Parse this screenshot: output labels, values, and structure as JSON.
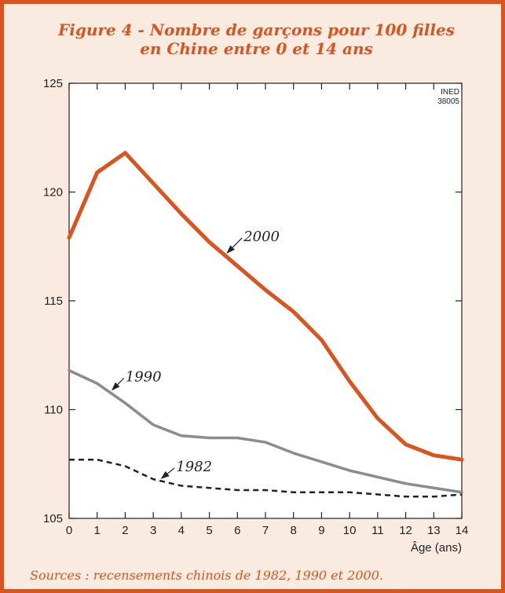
{
  "chart_data": {
    "type": "line",
    "title": "Figure 4 - Nombre de garçons pour 100 filles",
    "subtitle": "en Chine entre 0 et 14 ans",
    "xlabel": "Âge (ans)",
    "ylabel": "",
    "xlim": [
      0,
      14
    ],
    "ylim": [
      105,
      125
    ],
    "xticks": [
      0,
      1,
      2,
      3,
      4,
      5,
      6,
      7,
      8,
      9,
      10,
      11,
      12,
      13,
      14
    ],
    "yticks": [
      105,
      110,
      115,
      120,
      125
    ],
    "grid": false,
    "x": [
      0,
      1,
      2,
      3,
      4,
      5,
      6,
      7,
      8,
      9,
      10,
      11,
      12,
      13,
      14
    ],
    "series": [
      {
        "name": "2000",
        "color": "#d9541f",
        "style": "solid",
        "values": [
          117.9,
          120.9,
          121.8,
          120.4,
          119.0,
          117.7,
          116.6,
          115.5,
          114.5,
          113.2,
          111.3,
          109.6,
          108.4,
          107.9,
          107.7
        ]
      },
      {
        "name": "1990",
        "color": "#8c8c8c",
        "style": "solid",
        "values": [
          111.8,
          111.2,
          110.3,
          109.3,
          108.8,
          108.7,
          108.7,
          108.5,
          108.0,
          107.6,
          107.2,
          106.9,
          106.6,
          106.4,
          106.2
        ]
      },
      {
        "name": "1982",
        "color": "#222222",
        "style": "dashed",
        "values": [
          107.7,
          107.7,
          107.4,
          106.8,
          106.5,
          106.4,
          106.3,
          106.3,
          106.2,
          106.2,
          106.2,
          106.1,
          106.0,
          106.0,
          106.1
        ]
      }
    ],
    "annotations": [
      {
        "text": "INED",
        "position": "top-right"
      },
      {
        "text": "38005",
        "position": "top-right"
      }
    ]
  },
  "source": "Sources : recensements chinois de 1982, 1990 et 2000."
}
